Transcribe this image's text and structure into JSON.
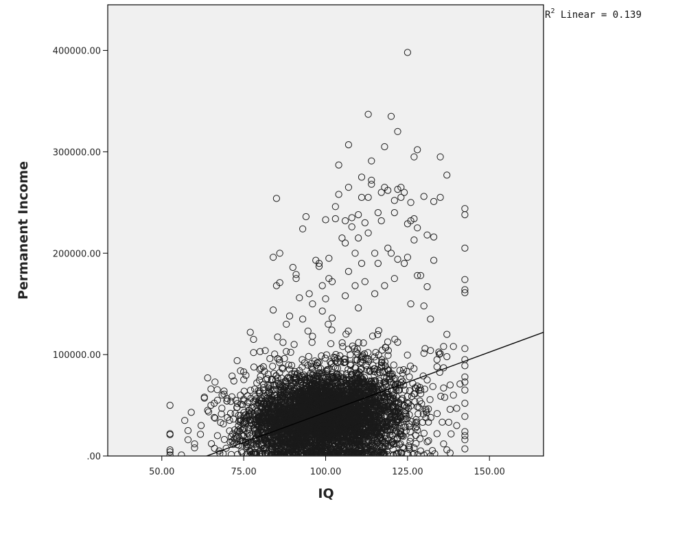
{
  "chart_data": {
    "type": "scatter",
    "title": "",
    "xlabel": "IQ",
    "ylabel": "Permanent Income",
    "xlim": [
      33.5,
      166.5
    ],
    "ylim": [
      0,
      445000
    ],
    "x_ticks": [
      50,
      75,
      100,
      125,
      150
    ],
    "x_tick_labels": [
      "50.00",
      "75.00",
      "100.00",
      "125.00",
      "150.00"
    ],
    "y_ticks": [
      0,
      100000,
      200000,
      300000,
      400000
    ],
    "y_tick_labels": [
      ".00",
      "100000.00",
      "200000.00",
      "300000.00",
      "400000.00"
    ],
    "grid": false,
    "background_color": "#f0f0f0",
    "marker": "open-circle",
    "marker_color": "#1a1a1a",
    "fit_line": {
      "type": "linear",
      "label_prefix": "R",
      "label_superscript": "2",
      "label_suffix": " Linear = 0.139",
      "r_squared": 0.139,
      "points": [
        [
          59.5,
          -5000
        ],
        [
          166.5,
          122000
        ]
      ]
    },
    "density_clusters": [
      {
        "cx": 100,
        "cy": 40000,
        "sx": 9.5,
        "sy": 22000,
        "count": 2600
      },
      {
        "cx": 88,
        "cy": 28000,
        "sx": 8,
        "sy": 18000,
        "count": 900
      },
      {
        "cx": 112,
        "cy": 45000,
        "sx": 9,
        "sy": 28000,
        "count": 900
      }
    ],
    "series": [
      {
        "points": [
          [
            52.5,
            50000
          ],
          [
            52.5,
            22000
          ],
          [
            52.5,
            21000
          ],
          [
            52.5,
            6000
          ],
          [
            52.5,
            4000
          ],
          [
            52.5,
            1000
          ],
          [
            56,
            1000
          ],
          [
            57,
            35000
          ],
          [
            58,
            25000
          ],
          [
            58,
            16000
          ],
          [
            59,
            43000
          ],
          [
            60,
            8000
          ],
          [
            60,
            12000
          ],
          [
            62,
            30000
          ],
          [
            63,
            58000
          ],
          [
            63,
            57000
          ],
          [
            64,
            77000
          ],
          [
            64,
            45000
          ],
          [
            65,
            50000
          ],
          [
            65,
            66000
          ],
          [
            66,
            52000
          ],
          [
            66,
            38000
          ],
          [
            67,
            20000
          ],
          [
            67,
            55000
          ],
          [
            69,
            64000
          ],
          [
            69,
            61000
          ],
          [
            70,
            38000
          ],
          [
            71,
            42000
          ],
          [
            72,
            74000
          ],
          [
            73,
            94000
          ],
          [
            73,
            48000
          ],
          [
            74,
            84000
          ],
          [
            74,
            60000
          ],
          [
            75,
            56000
          ],
          [
            75,
            83000
          ],
          [
            77,
            122000
          ],
          [
            78,
            102000
          ],
          [
            78,
            115000
          ],
          [
            79,
            72000
          ],
          [
            80,
            103000
          ],
          [
            81,
            88000
          ],
          [
            83,
            96000
          ],
          [
            84,
            144000
          ],
          [
            84,
            196000
          ],
          [
            85,
            168000
          ],
          [
            85,
            254000
          ],
          [
            86,
            200000
          ],
          [
            86,
            171000
          ],
          [
            87,
            112000
          ],
          [
            88,
            103000
          ],
          [
            88,
            130000
          ],
          [
            89,
            138000
          ],
          [
            90,
            186000
          ],
          [
            91,
            179000
          ],
          [
            91,
            175000
          ],
          [
            92,
            156000
          ],
          [
            93,
            224000
          ],
          [
            93,
            135000
          ],
          [
            94,
            236000
          ],
          [
            95,
            160000
          ],
          [
            96,
            150000
          ],
          [
            96,
            118000
          ],
          [
            97,
            193000
          ],
          [
            98,
            187000
          ],
          [
            98,
            190000
          ],
          [
            99,
            143000
          ],
          [
            99,
            168000
          ],
          [
            100,
            155000
          ],
          [
            100,
            233000
          ],
          [
            101,
            195000
          ],
          [
            101,
            175000
          ],
          [
            102,
            172000
          ],
          [
            102,
            136000
          ],
          [
            103,
            234000
          ],
          [
            103,
            246000
          ],
          [
            104,
            287000
          ],
          [
            104,
            258000
          ],
          [
            105,
            215000
          ],
          [
            106,
            232000
          ],
          [
            106,
            210000
          ],
          [
            106,
            158000
          ],
          [
            107,
            265000
          ],
          [
            107,
            307000
          ],
          [
            107,
            182000
          ],
          [
            108,
            226000
          ],
          [
            108,
            235000
          ],
          [
            109,
            200000
          ],
          [
            109,
            168000
          ],
          [
            110,
            238000
          ],
          [
            110,
            146000
          ],
          [
            110,
            215000
          ],
          [
            111,
            275000
          ],
          [
            111,
            255000
          ],
          [
            111,
            190000
          ],
          [
            112,
            230000
          ],
          [
            112,
            172000
          ],
          [
            113,
            255000
          ],
          [
            113,
            337000
          ],
          [
            113,
            220000
          ],
          [
            114,
            268000
          ],
          [
            114,
            272000
          ],
          [
            114,
            291000
          ],
          [
            115,
            200000
          ],
          [
            115,
            160000
          ],
          [
            116,
            240000
          ],
          [
            116,
            190000
          ],
          [
            117,
            232000
          ],
          [
            117,
            260000
          ],
          [
            118,
            168000
          ],
          [
            118,
            305000
          ],
          [
            118,
            265000
          ],
          [
            119,
            262000
          ],
          [
            119,
            205000
          ],
          [
            120,
            335000
          ],
          [
            120,
            200000
          ],
          [
            121,
            252000
          ],
          [
            121,
            240000
          ],
          [
            121,
            175000
          ],
          [
            122,
            320000
          ],
          [
            122,
            194000
          ],
          [
            122,
            263000
          ],
          [
            123,
            265000
          ],
          [
            123,
            255000
          ],
          [
            124,
            260000
          ],
          [
            124,
            190000
          ],
          [
            125,
            398000
          ],
          [
            125,
            229000
          ],
          [
            125,
            196000
          ],
          [
            126,
            250000
          ],
          [
            126,
            232000
          ],
          [
            126,
            150000
          ],
          [
            127,
            295000
          ],
          [
            127,
            234000
          ],
          [
            127,
            213000
          ],
          [
            128,
            302000
          ],
          [
            128,
            225000
          ],
          [
            128,
            178000
          ],
          [
            129,
            178000
          ],
          [
            130,
            256000
          ],
          [
            130,
            148000
          ],
          [
            131,
            218000
          ],
          [
            131,
            167000
          ],
          [
            132,
            135000
          ],
          [
            132,
            104000
          ],
          [
            133,
            251000
          ],
          [
            133,
            193000
          ],
          [
            133,
            216000
          ],
          [
            134,
            95000
          ],
          [
            134,
            88000
          ],
          [
            135,
            255000
          ],
          [
            135,
            295000
          ],
          [
            135,
            101000
          ],
          [
            136,
            108000
          ],
          [
            136,
            87000
          ],
          [
            136,
            67000
          ],
          [
            137,
            277000
          ],
          [
            137,
            120000
          ],
          [
            137,
            98000
          ],
          [
            138,
            70000
          ],
          [
            138,
            46000
          ],
          [
            139,
            108000
          ],
          [
            139,
            60000
          ],
          [
            140,
            47000
          ],
          [
            140,
            30000
          ],
          [
            141,
            71000
          ],
          [
            142.5,
            244000
          ],
          [
            142.5,
            238000
          ],
          [
            142.5,
            205000
          ],
          [
            142.5,
            174000
          ],
          [
            142.5,
            164000
          ],
          [
            142.5,
            161000
          ],
          [
            142.5,
            106000
          ],
          [
            142.5,
            95000
          ],
          [
            142.5,
            89000
          ],
          [
            142.5,
            78000
          ],
          [
            142.5,
            73000
          ],
          [
            142.5,
            65000
          ],
          [
            142.5,
            52000
          ],
          [
            142.5,
            39000
          ],
          [
            142.5,
            24000
          ],
          [
            142.5,
            20000
          ],
          [
            142.5,
            16000
          ],
          [
            142.5,
            7000
          ],
          [
            134,
            22000
          ],
          [
            136,
            12000
          ],
          [
            137,
            6000
          ],
          [
            138,
            3000
          ],
          [
            131,
            14000
          ],
          [
            129,
            5000
          ],
          [
            130,
            1000
          ],
          [
            132,
            0
          ],
          [
            127,
            8000
          ],
          [
            125,
            2000
          ]
        ]
      }
    ]
  }
}
